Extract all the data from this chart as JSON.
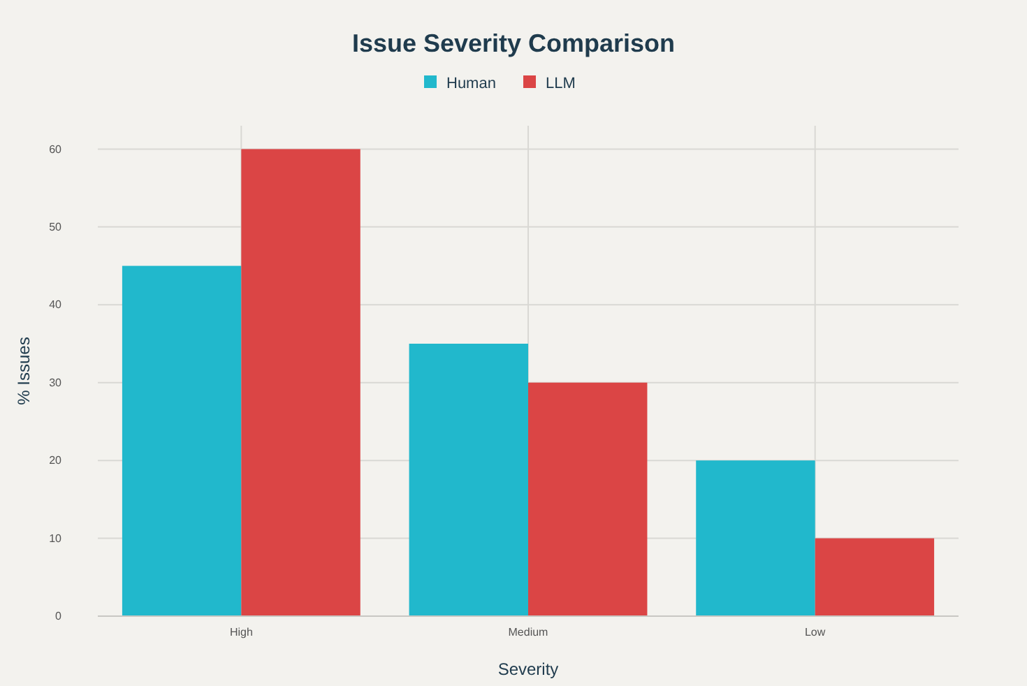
{
  "chart_data": {
    "type": "bar",
    "title": "Issue Severity Comparison",
    "xlabel": "Severity",
    "ylabel": "% Issues",
    "categories": [
      "High",
      "Medium",
      "Low"
    ],
    "series": [
      {
        "name": "Human",
        "color": "#21b8cc",
        "values": [
          45,
          35,
          20
        ]
      },
      {
        "name": "LLM",
        "color": "#db4545",
        "values": [
          60,
          30,
          10
        ]
      }
    ],
    "ylim": [
      0,
      63
    ],
    "yticks": [
      0,
      10,
      20,
      30,
      40,
      50,
      60
    ],
    "grid": true,
    "legend": "top"
  }
}
